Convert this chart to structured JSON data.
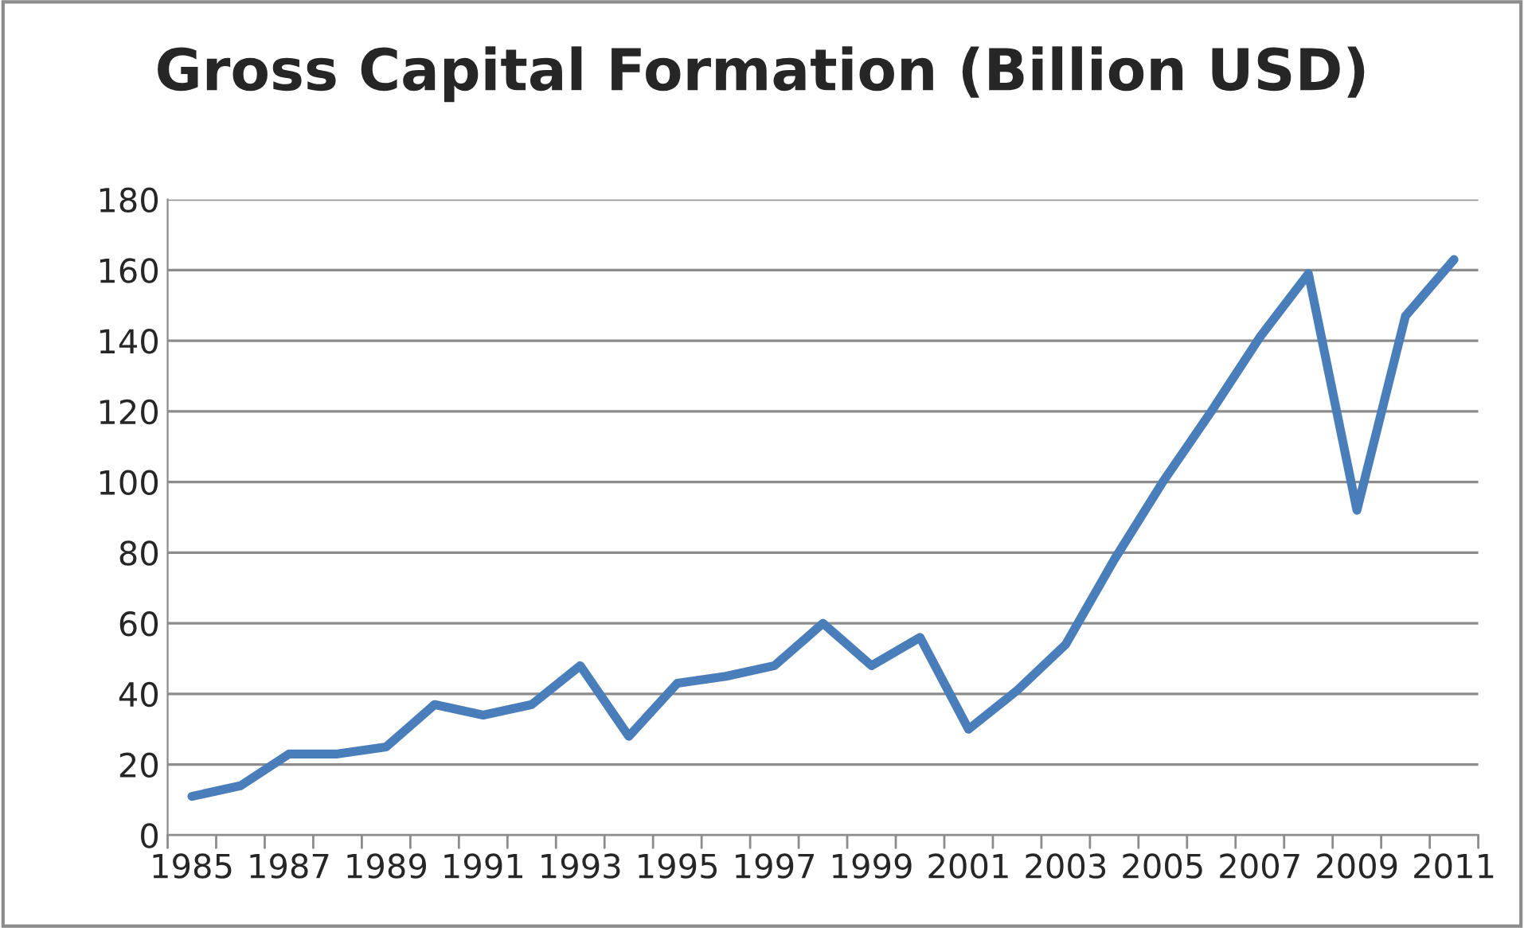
{
  "chart_data": {
    "type": "line",
    "title": "Gross Capital Formation (Billion USD)",
    "categories": [
      "1985",
      null,
      "1987",
      null,
      "1989",
      null,
      "1991",
      null,
      "1993",
      null,
      "1995",
      null,
      "1997",
      null,
      "1999",
      null,
      "2001",
      null,
      "2003",
      null,
      "2005",
      null,
      "2007",
      null,
      "2009",
      null,
      "2011"
    ],
    "series": [
      {
        "color": "#4a7ebb",
        "values": [
          11,
          14,
          23,
          23,
          25,
          37,
          34,
          37,
          48,
          28,
          43,
          45,
          48,
          60,
          48,
          56,
          30,
          41,
          54,
          78,
          100,
          120,
          141,
          159,
          92,
          147,
          163
        ]
      }
    ],
    "ylim": [
      0,
      180
    ],
    "yticks": [
      0,
      20,
      40,
      60,
      80,
      100,
      120,
      140,
      160,
      180
    ],
    "grid": "y",
    "marker": "none",
    "line_style": "solid",
    "legend": false
  }
}
